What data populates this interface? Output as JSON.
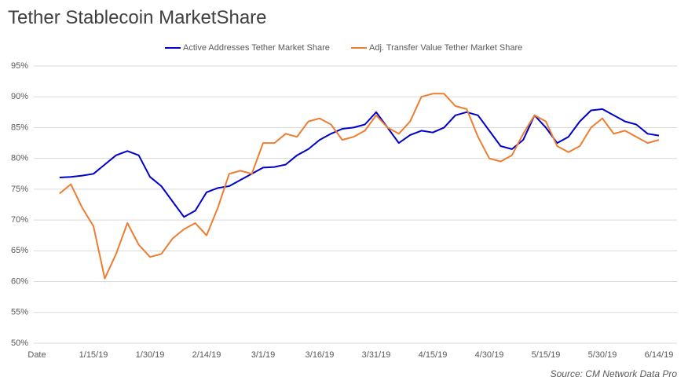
{
  "chart_data": {
    "type": "line",
    "title": "Tether Stablecoin MarketShare",
    "source": "Source: CM Network Data Pro",
    "categories": [
      "Date",
      null,
      null,
      null,
      null,
      "1/15/19",
      null,
      null,
      null,
      null,
      "1/30/19",
      null,
      null,
      null,
      null,
      "2/14/19",
      null,
      null,
      null,
      null,
      "3/1/19",
      null,
      null,
      null,
      null,
      "3/16/19",
      null,
      null,
      null,
      null,
      "3/31/19",
      null,
      null,
      null,
      null,
      "4/15/19",
      null,
      null,
      null,
      null,
      "4/30/19",
      null,
      null,
      null,
      null,
      "5/15/19",
      null,
      null,
      null,
      null,
      "5/30/19",
      null,
      null,
      null,
      null,
      "6/14/19"
    ],
    "series": [
      {
        "name": "Active Addresses Tether Market Share",
        "color": "#0000cc",
        "values": [
          null,
          null,
          76.9,
          77.0,
          77.2,
          77.5,
          79.0,
          80.5,
          81.2,
          80.5,
          77.0,
          75.5,
          73.0,
          70.5,
          71.5,
          74.5,
          75.2,
          75.5,
          76.5,
          77.5,
          78.5,
          78.6,
          79.0,
          80.5,
          81.5,
          83.0,
          84.0,
          84.8,
          85.0,
          85.5,
          87.5,
          85.0,
          82.5,
          83.8,
          84.5,
          84.2,
          85.0,
          87.0,
          87.5,
          87.0,
          84.5,
          82.0,
          81.5,
          83.0,
          87.0,
          85.0,
          82.5,
          83.5,
          86.0,
          87.8,
          88.0,
          87.0,
          86.0,
          85.5,
          84.0,
          83.7
        ]
      },
      {
        "name": "Adj. Transfer Value Tether Market Share",
        "color": "#ed7d31",
        "values": [
          null,
          null,
          74.3,
          75.8,
          72.0,
          69.0,
          60.5,
          64.5,
          69.5,
          66.0,
          64.0,
          64.5,
          67.0,
          68.5,
          69.5,
          67.5,
          72.0,
          77.5,
          78.0,
          77.5,
          82.5,
          82.5,
          84.0,
          83.5,
          86.0,
          86.5,
          85.5,
          83.0,
          83.5,
          84.5,
          87.0,
          85.0,
          84.0,
          86.0,
          90.0,
          90.5,
          90.5,
          88.5,
          88.0,
          83.5,
          80.0,
          79.5,
          80.5,
          84.0,
          87.0,
          86.0,
          82.0,
          81.0,
          82.0,
          85.0,
          86.5,
          84.0,
          84.5,
          83.5,
          82.5,
          83.0
        ]
      }
    ],
    "ylim": [
      50,
      95
    ],
    "yticks": [
      {
        "value": 50,
        "label": "50%"
      },
      {
        "value": 55,
        "label": "55%"
      },
      {
        "value": 60,
        "label": "60%"
      },
      {
        "value": 65,
        "label": "65%"
      },
      {
        "value": 70,
        "label": "70%"
      },
      {
        "value": 75,
        "label": "75%"
      },
      {
        "value": 80,
        "label": "80%"
      },
      {
        "value": 85,
        "label": "85%"
      },
      {
        "value": 90,
        "label": "90%"
      },
      {
        "value": 95,
        "label": "95%"
      }
    ],
    "grid": true,
    "legend": "top"
  }
}
